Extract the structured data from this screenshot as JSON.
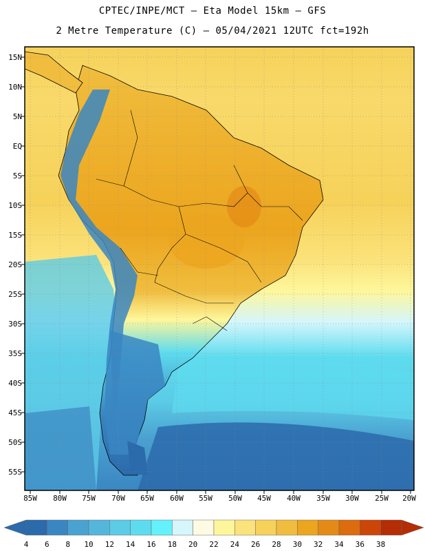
{
  "header": {
    "line1": "CPTEC/INPE/MCT –  Eta Model 15km – GFS",
    "line2": "2 Metre Temperature (C) – 05/04/2021 12UTC fct=192h"
  },
  "map": {
    "lat_labels": [
      "15N",
      "10N",
      "5N",
      "EQ",
      "5S",
      "10S",
      "15S",
      "20S",
      "25S",
      "30S",
      "35S",
      "40S",
      "45S",
      "50S",
      "55S"
    ],
    "lon_labels": [
      "85W",
      "80W",
      "75W",
      "70W",
      "65W",
      "60W",
      "55W",
      "50W",
      "45W",
      "40W",
      "35W",
      "30W",
      "25W",
      "20W"
    ]
  },
  "colorbar": {
    "labels": [
      "4",
      "6",
      "8",
      "10",
      "12",
      "14",
      "16",
      "18",
      "20",
      "22",
      "24",
      "26",
      "28",
      "30",
      "32",
      "34",
      "36",
      "38"
    ],
    "colors": [
      "#2b6aab",
      "#3a86c2",
      "#4aa2d1",
      "#55b6dc",
      "#5ccbe6",
      "#5edcef",
      "#63f2fb",
      "#d5f6fb",
      "#fefae3",
      "#fef69b",
      "#fbe27a",
      "#f6d25a",
      "#f0bd3e",
      "#eca51e",
      "#e48a16",
      "#dc6c0e",
      "#cc4608",
      "#b52d04"
    ]
  }
}
